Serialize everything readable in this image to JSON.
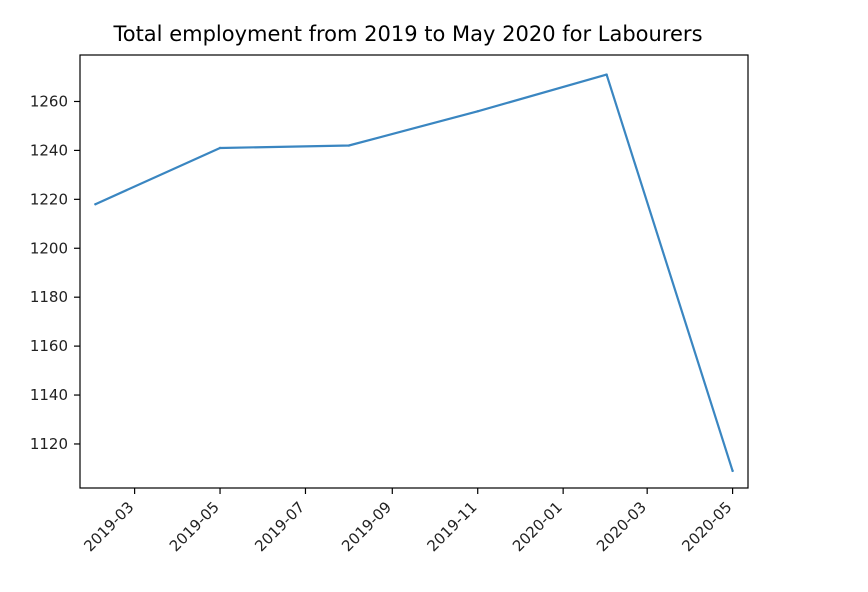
{
  "chart_data": {
    "type": "line",
    "title": "Total employment from 2019 to May 2020 for Labourers",
    "xlabel": "",
    "ylabel": "",
    "x_axis_type": "date",
    "xlim": [
      "2019-01-21",
      "2020-05-12"
    ],
    "ylim": [
      1102,
      1279
    ],
    "x_ticks": [
      "2019-03",
      "2019-05",
      "2019-07",
      "2019-09",
      "2019-11",
      "2020-01",
      "2020-03",
      "2020-05"
    ],
    "y_ticks": [
      1120,
      1140,
      1160,
      1180,
      1200,
      1220,
      1240,
      1260
    ],
    "grid": false,
    "series": [
      {
        "color": "#3a86c1",
        "points": [
          {
            "x": "2019-02-01",
            "y": 1218
          },
          {
            "x": "2019-05-01",
            "y": 1241
          },
          {
            "x": "2019-08-01",
            "y": 1242
          },
          {
            "x": "2019-11-01",
            "y": 1256
          },
          {
            "x": "2020-02-01",
            "y": 1271
          },
          {
            "x": "2020-05-01",
            "y": 1109
          }
        ]
      }
    ]
  }
}
